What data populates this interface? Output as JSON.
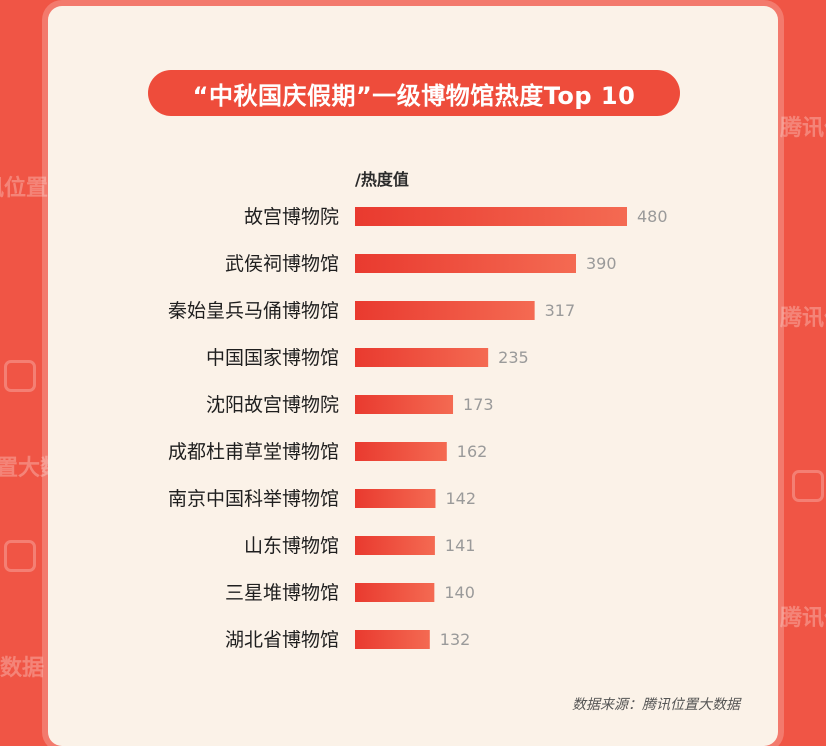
{
  "watermark": {
    "brand": "腾讯位置大数据"
  },
  "title": "“中秋国庆假期”一级博物馆热度Top 10",
  "source": "数据来源：腾讯位置大数据",
  "colors": {
    "background": "#f05545",
    "card": "#fbf2e8",
    "bar": "#ee4c3b",
    "value_label": "#9a9a9a"
  },
  "chart_data": {
    "type": "bar",
    "orientation": "horizontal",
    "title": "“中秋国庆假期”一级博物馆热度Top 10",
    "xlabel": "/热度值",
    "ylabel": "",
    "categories": [
      "故宫博物院",
      "武侯祠博物馆",
      "秦始皇兵马俑博物馆",
      "中国国家博物馆",
      "沈阳故宫博物院",
      "成都杜甫草堂博物馆",
      "南京中国科举博物馆",
      "山东博物馆",
      "三星堆博物馆",
      "湖北省博物馆"
    ],
    "values": [
      480,
      390,
      317,
      235,
      173,
      162,
      142,
      141,
      140,
      132
    ],
    "xlim": [
      0,
      480
    ],
    "grid": false,
    "legend": "none"
  }
}
